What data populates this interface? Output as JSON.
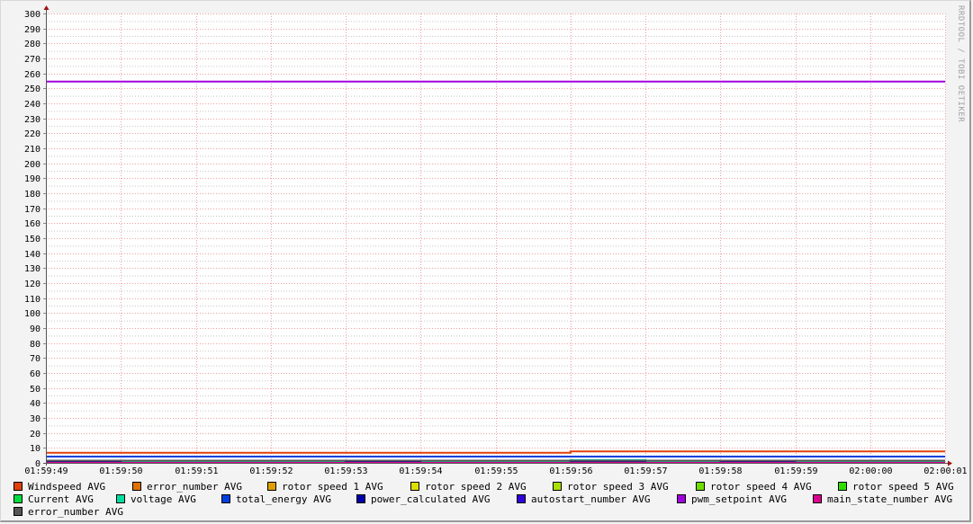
{
  "chart_data": {
    "type": "line",
    "title": "",
    "xlabel": "",
    "ylabel": "",
    "ylim": [
      0,
      300
    ],
    "y_ticks": [
      "0",
      "10",
      "20",
      "30",
      "40",
      "50",
      "60",
      "70",
      "80",
      "90",
      "100",
      "110",
      "120",
      "130",
      "140",
      "150",
      "160",
      "170",
      "180",
      "190",
      "200",
      "210",
      "220",
      "230",
      "240",
      "250",
      "260",
      "270",
      "280",
      "290",
      "300"
    ],
    "x_ticks": [
      "01:59:49",
      "01:59:50",
      "01:59:51",
      "01:59:52",
      "01:59:53",
      "01:59:54",
      "01:59:55",
      "01:59:56",
      "01:59:57",
      "01:59:58",
      "01:59:59",
      "02:00:00",
      "02:00:01"
    ],
    "grid": true,
    "legend_placement": "bottom",
    "watermark": "RRDTOOL / TOBI OETIKER",
    "series": [
      {
        "name": "Windspeed AVG",
        "color": "#e0400a",
        "x": [
          "01:59:49",
          "01:59:56",
          "01:59:56",
          "02:00:01"
        ],
        "y": [
          6.7,
          6.7,
          7.6,
          7.6
        ]
      },
      {
        "name": "error_number AVG",
        "color": "#e07000",
        "x": [
          "01:59:49",
          "02:00:01"
        ],
        "y": [
          0,
          0
        ]
      },
      {
        "name": "rotor speed 1 AVG",
        "color": "#dda000",
        "x": [
          "01:59:49",
          "02:00:01"
        ],
        "y": [
          0,
          0
        ]
      },
      {
        "name": "rotor speed 2 AVG",
        "color": "#dddd00",
        "x": [
          "01:59:49",
          "02:00:01"
        ],
        "y": [
          0,
          0
        ]
      },
      {
        "name": "rotor speed 3 AVG",
        "color": "#a8e000",
        "x": [
          "01:59:49",
          "02:00:01"
        ],
        "y": [
          0,
          0
        ]
      },
      {
        "name": "rotor speed 4 AVG",
        "color": "#70dd00",
        "x": [
          "01:59:49",
          "02:00:01"
        ],
        "y": [
          0,
          0
        ]
      },
      {
        "name": "rotor speed 5 AVG",
        "color": "#30dd00",
        "x": [
          "01:59:49",
          "02:00:01"
        ],
        "y": [
          0,
          0
        ]
      },
      {
        "name": "Current AVG",
        "color": "#00dd40",
        "x": [
          "01:59:49",
          "02:00:01"
        ],
        "y": [
          0.5,
          0.5
        ]
      },
      {
        "name": "voltage AVG",
        "color": "#00dda0",
        "x": [
          "01:59:49",
          "01:59:56",
          "01:59:56",
          "01:59:57",
          "01:59:57",
          "02:00:01"
        ],
        "y": [
          1,
          1,
          1.8,
          1.8,
          1,
          1
        ]
      },
      {
        "name": "total_energy AVG",
        "color": "#0040dd",
        "x": [
          "01:59:49",
          "02:00:01"
        ],
        "y": [
          4.2,
          4.2
        ]
      },
      {
        "name": "power_calculated AVG",
        "color": "#0000aa",
        "x": [
          "01:59:49",
          "01:59:50",
          "01:59:50",
          "01:59:53",
          "01:59:53",
          "01:59:54",
          "01:59:54",
          "01:59:56",
          "01:59:56",
          "01:59:57",
          "01:59:57",
          "01:59:58",
          "01:59:58",
          "01:59:59",
          "01:59:59",
          "02:00:01"
        ],
        "y": [
          0.6,
          0.6,
          0,
          0,
          0.6,
          0.6,
          0,
          0,
          0.6,
          0.6,
          0,
          0,
          0.6,
          0.6,
          0,
          0
        ]
      },
      {
        "name": "autostart_number AVG",
        "color": "#3000dd",
        "x": [
          "01:59:49",
          "02:00:01"
        ],
        "y": [
          0,
          0
        ]
      },
      {
        "name": "pwm_setpoint AVG",
        "color": "#a000dd",
        "x": [
          "01:59:49",
          "02:00:01"
        ],
        "y": [
          254.5,
          254.5
        ]
      },
      {
        "name": "main_state_number AVG",
        "color": "#dd0090",
        "x": [
          "01:59:49",
          "02:00:01"
        ],
        "y": [
          0,
          0
        ]
      },
      {
        "name": "error_number AVG",
        "color": "#555555",
        "x": [
          "01:59:49",
          "02:00:01"
        ],
        "y": [
          1.5,
          1.5
        ]
      }
    ]
  }
}
